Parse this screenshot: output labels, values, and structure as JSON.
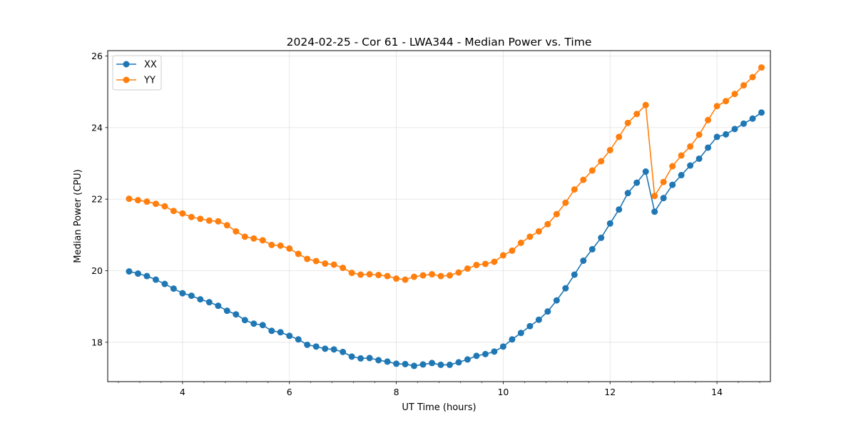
{
  "chart_data": {
    "type": "line",
    "title": "2024-02-25 - Cor 61 - LWA344 - Median Power vs. Time",
    "xlabel": "UT Time (hours)",
    "ylabel": "Median Power (CPU)",
    "xlim": [
      2.6,
      15.0
    ],
    "ylim": [
      16.9,
      26.15
    ],
    "xticks": [
      4,
      6,
      8,
      10,
      12,
      14
    ],
    "xtick_labels": [
      "4",
      "6",
      "8",
      "10",
      "12",
      "14"
    ],
    "yticks": [
      18,
      20,
      22,
      24,
      26
    ],
    "ytick_labels": [
      "18",
      "20",
      "22",
      "24",
      "26"
    ],
    "grid": true,
    "legend_position": "top-left",
    "x": [
      3.0,
      3.167,
      3.333,
      3.5,
      3.667,
      3.833,
      4.0,
      4.167,
      4.333,
      4.5,
      4.667,
      4.833,
      5.0,
      5.167,
      5.333,
      5.5,
      5.667,
      5.833,
      6.0,
      6.167,
      6.333,
      6.5,
      6.667,
      6.833,
      7.0,
      7.167,
      7.333,
      7.5,
      7.667,
      7.833,
      8.0,
      8.167,
      8.333,
      8.5,
      8.667,
      8.833,
      9.0,
      9.167,
      9.333,
      9.5,
      9.667,
      9.833,
      10.0,
      10.167,
      10.333,
      10.5,
      10.667,
      10.833,
      11.0,
      11.167,
      11.333,
      11.5,
      11.667,
      11.833,
      12.0,
      12.167,
      12.333,
      12.5,
      12.667,
      12.833,
      13.0,
      13.167,
      13.333,
      13.5,
      13.667,
      13.833,
      14.0,
      14.167,
      14.333,
      14.5,
      14.667,
      14.833
    ],
    "series": [
      {
        "name": "XX",
        "color": "#1f77b4",
        "values": [
          19.98,
          19.92,
          19.85,
          19.75,
          19.63,
          19.5,
          19.37,
          19.3,
          19.2,
          19.12,
          19.02,
          18.88,
          18.78,
          18.62,
          18.52,
          18.48,
          18.32,
          18.28,
          18.18,
          18.08,
          17.93,
          17.88,
          17.82,
          17.8,
          17.73,
          17.6,
          17.55,
          17.56,
          17.5,
          17.46,
          17.4,
          17.39,
          17.34,
          17.38,
          17.42,
          17.37,
          17.37,
          17.44,
          17.52,
          17.62,
          17.67,
          17.74,
          17.88,
          18.08,
          18.26,
          18.45,
          18.63,
          18.86,
          19.17,
          19.51,
          19.89,
          20.28,
          20.6,
          20.92,
          21.32,
          21.71,
          22.17,
          22.46,
          22.77,
          21.65,
          22.03,
          22.4,
          22.67,
          22.94,
          23.13,
          23.44,
          23.74,
          23.81,
          23.96,
          24.11,
          24.25,
          24.42
        ]
      },
      {
        "name": "YY",
        "color": "#ff7f0e",
        "values": [
          22.01,
          21.97,
          21.93,
          21.87,
          21.8,
          21.67,
          21.6,
          21.5,
          21.45,
          21.4,
          21.38,
          21.27,
          21.1,
          20.95,
          20.9,
          20.85,
          20.72,
          20.7,
          20.62,
          20.47,
          20.33,
          20.27,
          20.2,
          20.17,
          20.08,
          19.94,
          19.89,
          19.9,
          19.88,
          19.85,
          19.78,
          19.75,
          19.83,
          19.87,
          19.9,
          19.85,
          19.87,
          19.95,
          20.06,
          20.16,
          20.19,
          20.25,
          20.43,
          20.56,
          20.78,
          20.95,
          21.1,
          21.3,
          21.58,
          21.9,
          22.27,
          22.54,
          22.8,
          23.06,
          23.37,
          23.74,
          24.13,
          24.38,
          24.63,
          22.09,
          22.48,
          22.92,
          23.22,
          23.47,
          23.8,
          24.21,
          24.6,
          24.74,
          24.94,
          25.18,
          25.41,
          25.68
        ]
      }
    ]
  }
}
